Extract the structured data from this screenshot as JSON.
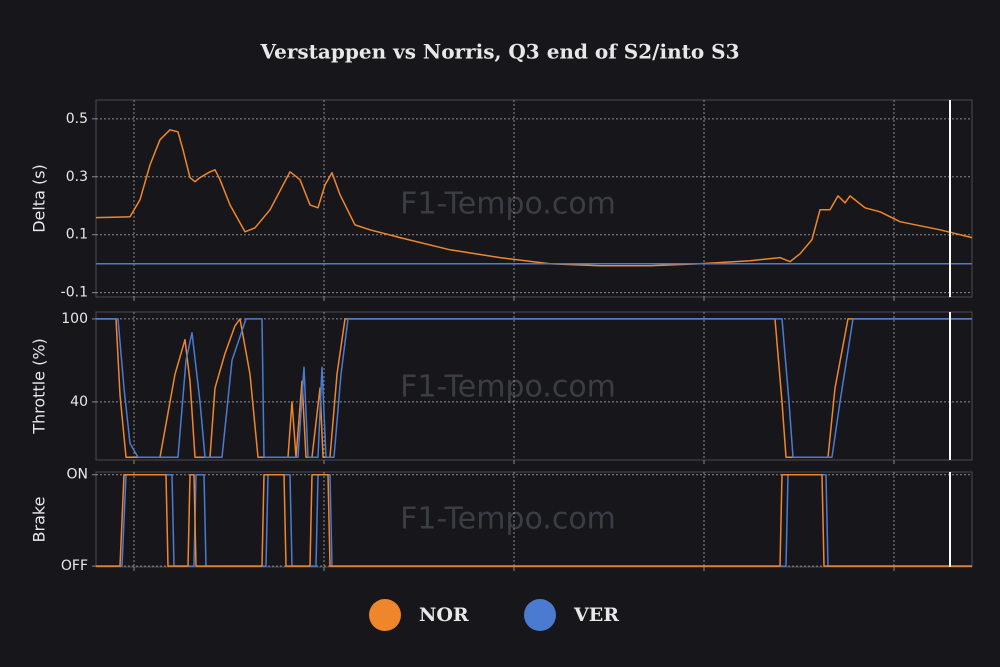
{
  "watermark": "F1-Tempo.com",
  "chart_data": [
    {
      "type": "line",
      "title": "Verstappen vs Norris, Q3 end of S2/into S3",
      "y_label": "Delta (s)",
      "xlim": [
        0,
        876
      ],
      "xticks": [
        38,
        228,
        418,
        608,
        798
      ],
      "ylim": [
        -0.115,
        0.565
      ],
      "yticks": [
        -0.1,
        0.1,
        0.3,
        0.5
      ],
      "grid": true,
      "cursor_x": 854,
      "series": [
        {
          "name": "NOR",
          "color": "#f0862b",
          "x": [
            0,
            34,
            44,
            54,
            64,
            74,
            82,
            87,
            94,
            99,
            104,
            114,
            119,
            124,
            134,
            149,
            159,
            174,
            194,
            204,
            214,
            222,
            229,
            236,
            244,
            259,
            274,
            304,
            354,
            404,
            454,
            504,
            554,
            604,
            654,
            684,
            694,
            704,
            716,
            724,
            734,
            742,
            749,
            754,
            769,
            784,
            804,
            844,
            876
          ],
          "values": [
            0.159,
            0.162,
            0.221,
            0.341,
            0.428,
            0.462,
            0.455,
            0.393,
            0.297,
            0.283,
            0.297,
            0.317,
            0.324,
            0.29,
            0.203,
            0.11,
            0.124,
            0.186,
            0.317,
            0.29,
            0.203,
            0.193,
            0.272,
            0.314,
            0.238,
            0.134,
            0.117,
            0.09,
            0.048,
            0.021,
            0.0,
            -0.007,
            -0.007,
            0.0,
            0.01,
            0.021,
            0.007,
            0.034,
            0.083,
            0.186,
            0.186,
            0.234,
            0.21,
            0.234,
            0.193,
            0.179,
            0.145,
            0.117,
            0.09
          ]
        },
        {
          "name": "VER",
          "color": "#4a7bd0",
          "x": [
            0,
            876
          ],
          "values": [
            0,
            0
          ]
        }
      ]
    },
    {
      "type": "line",
      "y_label": "Throttle (%)",
      "xlim": [
        0,
        876
      ],
      "xticks": [
        38,
        228,
        418,
        608,
        798
      ],
      "ylim": [
        -2,
        105
      ],
      "yticks": [
        40,
        100
      ],
      "grid": true,
      "cursor_x": 854,
      "series": [
        {
          "name": "NOR",
          "color": "#f0862b",
          "x": [
            0,
            20,
            24,
            30,
            64,
            79,
            89,
            94,
            99,
            114,
            119,
            129,
            139,
            144,
            154,
            162,
            192,
            196,
            200,
            206,
            210,
            216,
            224,
            227,
            234,
            241,
            249,
            679,
            686,
            690,
            732,
            739,
            752,
            876
          ],
          "values": [
            100,
            100,
            45,
            0,
            0,
            60,
            85,
            55,
            0,
            0,
            50,
            75,
            95,
            100,
            60,
            0,
            0,
            40,
            0,
            55,
            0,
            0,
            50,
            0,
            0,
            60,
            100,
            100,
            40,
            0,
            0,
            50,
            100,
            100
          ]
        },
        {
          "name": "VER",
          "color": "#4a7bd0",
          "x": [
            0,
            22,
            28,
            34,
            42,
            82,
            90,
            96,
            104,
            109,
            126,
            136,
            150,
            166,
            168,
            202,
            208,
            212,
            222,
            226,
            230,
            238,
            245,
            252,
            686,
            693,
            697,
            736,
            744,
            757,
            876
          ],
          "values": [
            100,
            100,
            50,
            10,
            0,
            0,
            70,
            90,
            40,
            0,
            0,
            70,
            100,
            100,
            0,
            0,
            65,
            0,
            0,
            65,
            0,
            0,
            60,
            100,
            100,
            40,
            0,
            0,
            40,
            100,
            100
          ]
        }
      ]
    },
    {
      "type": "line",
      "y_label": "Brake",
      "xlim": [
        0,
        876
      ],
      "xticks": [
        38,
        228,
        418,
        608,
        798
      ],
      "ylim": [
        -0.01,
        1.03
      ],
      "yticks": [
        {
          "value": 1,
          "label": "ON"
        },
        {
          "value": 0,
          "label": "OFF"
        }
      ],
      "grid": true,
      "cursor_x": 854,
      "series": [
        {
          "name": "VER",
          "color": "#4a7bd0",
          "x": [
            0,
            26,
            30,
            76,
            78,
            98,
            100,
            108,
            110,
            170,
            172,
            194,
            196,
            220,
            222,
            234,
            236,
            690,
            692,
            730,
            732,
            876
          ],
          "values": [
            0,
            0,
            1,
            1,
            0,
            0,
            1,
            1,
            0,
            0,
            1,
            1,
            0,
            0,
            1,
            1,
            0,
            0,
            1,
            1,
            0,
            0
          ]
        },
        {
          "name": "NOR",
          "color": "#f0862b",
          "x": [
            0,
            24,
            28,
            70,
            72,
            92,
            94,
            98,
            100,
            166,
            168,
            188,
            190,
            214,
            216,
            232,
            234,
            684,
            686,
            726,
            728,
            876
          ],
          "values": [
            0,
            0,
            1,
            1,
            0,
            0,
            1,
            1,
            0,
            0,
            1,
            1,
            0,
            0,
            1,
            1,
            0,
            0,
            1,
            1,
            0,
            0
          ]
        }
      ]
    }
  ]
}
